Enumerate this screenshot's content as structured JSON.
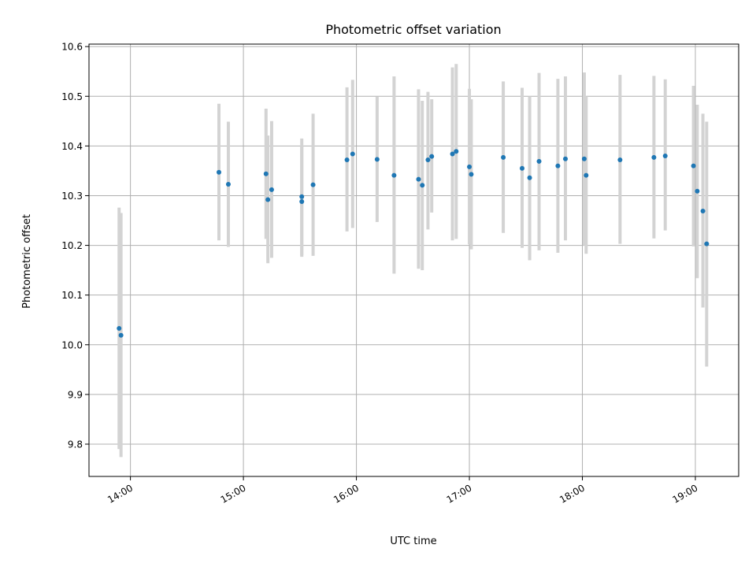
{
  "chart_data": {
    "type": "scatter",
    "title": "Photometric offset variation",
    "xlabel": "UTC time",
    "ylabel": "Photometric offset",
    "ylim": [
      9.735,
      10.605
    ],
    "xlim": [
      "13:38",
      "19:23"
    ],
    "x_ticks": [
      "14:00",
      "15:00",
      "16:00",
      "17:00",
      "18:00",
      "19:00"
    ],
    "y_ticks": [
      "9.8",
      "9.9",
      "10.0",
      "10.1",
      "10.2",
      "10.3",
      "10.4",
      "10.5",
      "10.6"
    ],
    "grid": true,
    "points": [
      {
        "x": "13:54",
        "y": 10.033,
        "ylo": 9.79,
        "yhi": 10.276
      },
      {
        "x": "13:55",
        "y": 10.019,
        "ylo": 9.774,
        "yhi": 10.265
      },
      {
        "x": "14:47",
        "y": 10.347,
        "ylo": 10.21,
        "yhi": 10.485
      },
      {
        "x": "14:52",
        "y": 10.323,
        "ylo": 10.197,
        "yhi": 10.449
      },
      {
        "x": "15:12",
        "y": 10.344,
        "ylo": 10.213,
        "yhi": 10.475
      },
      {
        "x": "15:13",
        "y": 10.292,
        "ylo": 10.164,
        "yhi": 10.421
      },
      {
        "x": "15:15",
        "y": 10.312,
        "ylo": 10.175,
        "yhi": 10.45
      },
      {
        "x": "15:31",
        "y": 10.288,
        "ylo": 10.177,
        "yhi": 10.4
      },
      {
        "x": "15:31",
        "y": 10.298,
        "ylo": 10.18,
        "yhi": 10.415
      },
      {
        "x": "15:37",
        "y": 10.322,
        "ylo": 10.179,
        "yhi": 10.465
      },
      {
        "x": "15:55",
        "y": 10.372,
        "ylo": 10.228,
        "yhi": 10.518
      },
      {
        "x": "15:58",
        "y": 10.384,
        "ylo": 10.235,
        "yhi": 10.533
      },
      {
        "x": "16:11",
        "y": 10.373,
        "ylo": 10.247,
        "yhi": 10.499
      },
      {
        "x": "16:20",
        "y": 10.341,
        "ylo": 10.143,
        "yhi": 10.54
      },
      {
        "x": "16:33",
        "y": 10.333,
        "ylo": 10.153,
        "yhi": 10.514
      },
      {
        "x": "16:35",
        "y": 10.321,
        "ylo": 10.15,
        "yhi": 10.491
      },
      {
        "x": "16:38",
        "y": 10.372,
        "ylo": 10.232,
        "yhi": 10.509
      },
      {
        "x": "16:40",
        "y": 10.379,
        "ylo": 10.266,
        "yhi": 10.494
      },
      {
        "x": "16:51",
        "y": 10.384,
        "ylo": 10.21,
        "yhi": 10.558
      },
      {
        "x": "16:53",
        "y": 10.389,
        "ylo": 10.213,
        "yhi": 10.565
      },
      {
        "x": "17:00",
        "y": 10.358,
        "ylo": 10.202,
        "yhi": 10.515
      },
      {
        "x": "17:01",
        "y": 10.343,
        "ylo": 10.192,
        "yhi": 10.494
      },
      {
        "x": "17:18",
        "y": 10.377,
        "ylo": 10.225,
        "yhi": 10.53
      },
      {
        "x": "17:28",
        "y": 10.355,
        "ylo": 10.195,
        "yhi": 10.517
      },
      {
        "x": "17:32",
        "y": 10.336,
        "ylo": 10.17,
        "yhi": 10.5
      },
      {
        "x": "17:37",
        "y": 10.369,
        "ylo": 10.19,
        "yhi": 10.547
      },
      {
        "x": "17:47",
        "y": 10.36,
        "ylo": 10.185,
        "yhi": 10.535
      },
      {
        "x": "17:51",
        "y": 10.374,
        "ylo": 10.21,
        "yhi": 10.54
      },
      {
        "x": "18:01",
        "y": 10.374,
        "ylo": 10.2,
        "yhi": 10.548
      },
      {
        "x": "18:02",
        "y": 10.341,
        "ylo": 10.183,
        "yhi": 10.5
      },
      {
        "x": "18:20",
        "y": 10.372,
        "ylo": 10.203,
        "yhi": 10.543
      },
      {
        "x": "18:38",
        "y": 10.377,
        "ylo": 10.214,
        "yhi": 10.541
      },
      {
        "x": "18:44",
        "y": 10.38,
        "ylo": 10.23,
        "yhi": 10.534
      },
      {
        "x": "18:59",
        "y": 10.36,
        "ylo": 10.198,
        "yhi": 10.521
      },
      {
        "x": "19:01",
        "y": 10.309,
        "ylo": 10.134,
        "yhi": 10.483
      },
      {
        "x": "19:04",
        "y": 10.269,
        "ylo": 10.075,
        "yhi": 10.465
      },
      {
        "x": "19:06",
        "y": 10.203,
        "ylo": 9.956,
        "yhi": 10.449
      }
    ],
    "colors": {
      "point": "#1f77b4",
      "errorbar": "#d3d3d3",
      "grid": "#b0b0b0",
      "axes": "#000000"
    }
  }
}
